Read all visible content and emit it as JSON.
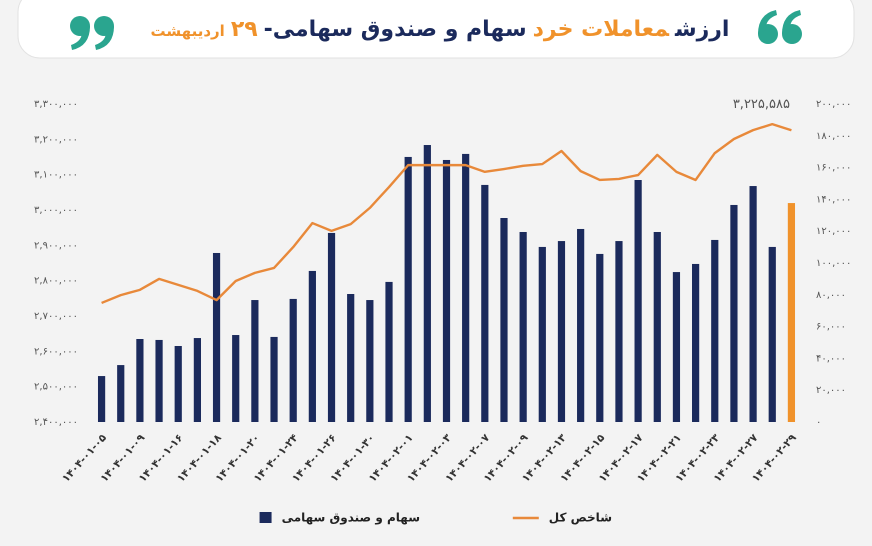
{
  "chart_data": {
    "type": "bar-line",
    "title_parts": [
      {
        "text": "ارزش",
        "color": "#1b2a5c"
      },
      {
        "text": "معاملات خرد",
        "color": "#f0922b"
      },
      {
        "text": "سهام و صندوق سهامی-",
        "color": "#1b2a5c"
      },
      {
        "text": "۲۹",
        "color": "#f0922b"
      },
      {
        "text": "اردیبهشت",
        "color": "#f0922b"
      }
    ],
    "categories": [
      "۱۴۰۴-۰۱-۰۵",
      null,
      "۱۴۰۴-۰۱-۰۹",
      null,
      "۱۴۰۴-۰۱-۱۶",
      null,
      "۱۴۰۴-۰۱-۱۸",
      null,
      "۱۴۰۴-۰۱-۲۰",
      null,
      "۱۴۰۴-۰۱-۲۴",
      null,
      "۱۴۰۴-۰۱-۲۶",
      null,
      "۱۴۰۴-۰۱-۳۰",
      null,
      "۱۴۰۴-۰۲-۰۱",
      null,
      "۱۴۰۴-۰۲-۰۳",
      null,
      "۱۴۰۴-۰۲-۰۷",
      null,
      "۱۴۰۴-۰۲-۰۹",
      null,
      "۱۴۰۴-۰۲-۱۳",
      null,
      "۱۴۰۴-۰۲-۱۵",
      null,
      "۱۴۰۴-۰۲-۱۷",
      null,
      "۱۴۰۴-۰۲-۲۱",
      null,
      "۱۴۰۴-۰۲-۲۳",
      null,
      "۱۴۰۴-۰۲-۲۷",
      null,
      "۱۴۰۴-۰۲-۲۹"
    ],
    "series": [
      {
        "name": "سهام و صندوق سهامی",
        "kind": "bar",
        "axis": "y2",
        "color": "#1b2a5c",
        "colors": [
          "#1b2a5c",
          "#1b2a5c",
          "#1b2a5c",
          "#1b2a5c",
          "#1b2a5c",
          "#1b2a5c",
          "#1b2a5c",
          "#1b2a5c",
          "#1b2a5c",
          "#1b2a5c",
          "#1b2a5c",
          "#1b2a5c",
          "#1b2a5c",
          "#1b2a5c",
          "#1b2a5c",
          "#1b2a5c",
          "#1b2a5c",
          "#1b2a5c",
          "#1b2a5c",
          "#1b2a5c",
          "#1b2a5c",
          "#1b2a5c",
          "#1b2a5c",
          "#1b2a5c",
          "#1b2a5c",
          "#1b2a5c",
          "#1b2a5c",
          "#1b2a5c",
          "#1b2a5c",
          "#1b2a5c",
          "#1b2a5c",
          "#1b2a5c",
          "#1b2a5c",
          "#1b2a5c",
          "#1b2a5c",
          "#1b2a5c",
          "#f0922b"
        ],
        "values": [
          28900,
          35800,
          52200,
          51600,
          47800,
          52800,
          106300,
          54700,
          76700,
          53500,
          77400,
          95000,
          118900,
          80500,
          76700,
          88100,
          166700,
          174200,
          164800,
          168600,
          149100,
          128300,
          119500,
          110100,
          113800,
          121400,
          105700,
          113800,
          152200,
          119500,
          94300,
          99400,
          114500,
          136500,
          148400,
          110100,
          137700
        ]
      },
      {
        "name": "شاخص کل",
        "kind": "line",
        "axis": "y",
        "color": "#e8893a",
        "values": [
          2737000,
          2759000,
          2774000,
          2805000,
          2788000,
          2771000,
          2745000,
          2799000,
          2822000,
          2836000,
          2895000,
          2963000,
          2941000,
          2960000,
          3006000,
          3065000,
          3127000,
          3127000,
          3127000,
          3127000,
          3108000,
          3116000,
          3125000,
          3130000,
          3167000,
          3110000,
          3085000,
          3088000,
          3099000,
          3156000,
          3108000,
          3085000,
          3161000,
          3201000,
          3226000,
          3243000,
          3225585
        ],
        "value_labels": [
          null,
          null,
          null,
          null,
          null,
          null,
          null,
          null,
          null,
          null,
          null,
          null,
          null,
          null,
          null,
          null,
          null,
          null,
          null,
          null,
          null,
          null,
          null,
          null,
          null,
          null,
          null,
          null,
          null,
          null,
          null,
          null,
          null,
          null,
          null,
          null,
          "۳,۲۲۵,۵۸۵"
        ]
      }
    ],
    "ylim": [
      2400000,
      3300000
    ],
    "yticks": [
      {
        "value": 2400000,
        "label": "۲,۴۰۰,۰۰۰"
      },
      {
        "value": 2500000,
        "label": "۲,۵۰۰,۰۰۰"
      },
      {
        "value": 2600000,
        "label": "۲,۶۰۰,۰۰۰"
      },
      {
        "value": 2700000,
        "label": "۲,۷۰۰,۰۰۰"
      },
      {
        "value": 2800000,
        "label": "۲,۸۰۰,۰۰۰"
      },
      {
        "value": 2900000,
        "label": "۲,۹۰۰,۰۰۰"
      },
      {
        "value": 3000000,
        "label": "۳,۰۰۰,۰۰۰"
      },
      {
        "value": 3100000,
        "label": "۳,۱۰۰,۰۰۰"
      },
      {
        "value": 3200000,
        "label": "۳,۲۰۰,۰۰۰"
      },
      {
        "value": 3300000,
        "label": "۳,۳۰۰,۰۰۰"
      }
    ],
    "y2lim": [
      0,
      200000
    ],
    "y2ticks": [
      {
        "value": 0,
        "label": "۰"
      },
      {
        "value": 20000,
        "label": "۲۰,۰۰۰"
      },
      {
        "value": 40000,
        "label": "۴۰,۰۰۰"
      },
      {
        "value": 60000,
        "label": "۶۰,۰۰۰"
      },
      {
        "value": 80000,
        "label": "۸۰,۰۰۰"
      },
      {
        "value": 100000,
        "label": "۱۰۰,۰۰۰"
      },
      {
        "value": 120000,
        "label": "۱۲۰,۰۰۰"
      },
      {
        "value": 140000,
        "label": "۱۴۰,۰۰۰"
      },
      {
        "value": 160000,
        "label": "۱۶۰,۰۰۰"
      },
      {
        "value": 180000,
        "label": "۱۸۰,۰۰۰"
      },
      {
        "value": 200000,
        "label": "۲۰۰,۰۰۰"
      }
    ],
    "grid": false,
    "legend": "bottom"
  }
}
